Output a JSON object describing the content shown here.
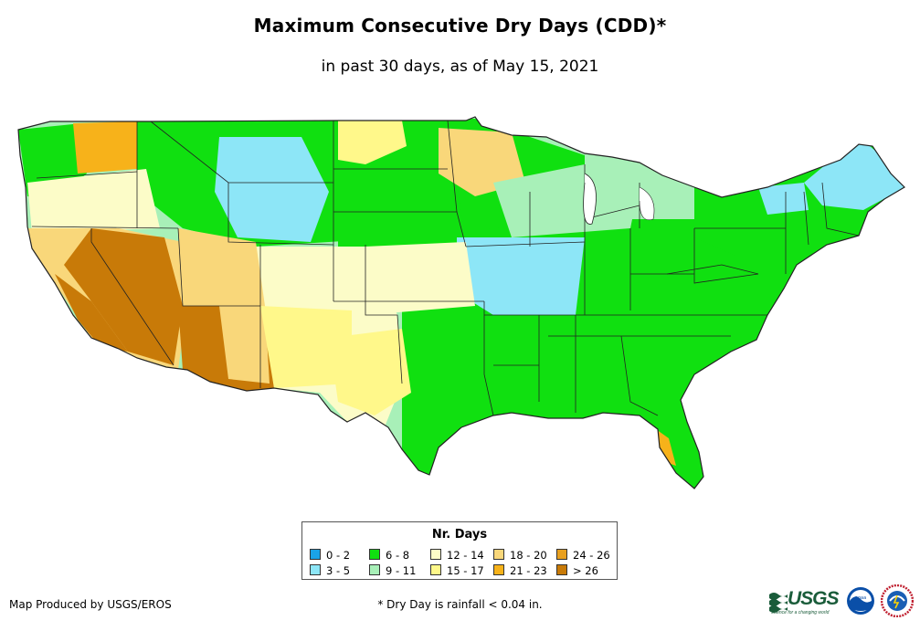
{
  "header": {
    "title": "Maximum Consecutive Dry Days (CDD)*",
    "subtitle": "in past 30 days, as of May 15, 2021"
  },
  "legend": {
    "title": "Nr. Days",
    "items": [
      {
        "label": "0 - 2",
        "color": "#1aa3e8"
      },
      {
        "label": "3 - 5",
        "color": "#8de6f7"
      },
      {
        "label": "6 - 8",
        "color": "#10e010"
      },
      {
        "label": "9 - 11",
        "color": "#a8f0b8"
      },
      {
        "label": "12 - 14",
        "color": "#fcfcc8"
      },
      {
        "label": "15 - 17",
        "color": "#fff88a"
      },
      {
        "label": "18 - 20",
        "color": "#f9d77a"
      },
      {
        "label": "21 - 23",
        "color": "#f7b21a"
      },
      {
        "label": "24 - 26",
        "color": "#e8a020"
      },
      {
        "label": "> 26",
        "color": "#c87a08"
      }
    ]
  },
  "footer": {
    "credit": "Map Produced by USGS/EROS",
    "footnote": "* Dry Day is rainfall < 0.04 in.",
    "usgs_logo_text": "USGS",
    "usgs_tagline": "science for a changing world",
    "noaa_logo_text": "noaa"
  }
}
